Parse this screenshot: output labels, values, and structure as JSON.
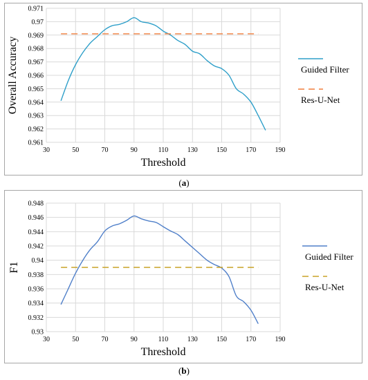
{
  "chart_data": [
    {
      "type": "line",
      "panel_label": "(a)",
      "xlabel": "Threshold",
      "ylabel": "Overall Accuracy",
      "xlim": [
        30,
        190
      ],
      "xticks": [
        30,
        50,
        70,
        90,
        110,
        130,
        150,
        170,
        190
      ],
      "ylim": [
        0.961,
        0.971
      ],
      "yticks": [
        "0.961",
        "0.962",
        "0.963",
        "0.964",
        "0.965",
        "0.966",
        "0.967",
        "0.968",
        "0.969",
        "0.97",
        "0.971"
      ],
      "grid": true,
      "legend_position": "right",
      "series": [
        {
          "name": "Guided Filter",
          "style": "solid",
          "color": "#2e9fc9",
          "x": [
            40,
            45,
            50,
            55,
            60,
            65,
            70,
            75,
            80,
            85,
            90,
            95,
            100,
            105,
            110,
            115,
            120,
            125,
            130,
            135,
            140,
            145,
            150,
            155,
            160,
            165,
            170,
            175,
            180
          ],
          "y": [
            0.9641,
            0.9656,
            0.9668,
            0.9677,
            0.9684,
            0.9689,
            0.9694,
            0.9697,
            0.9698,
            0.97,
            0.9703,
            0.97,
            0.9699,
            0.9697,
            0.9693,
            0.969,
            0.9686,
            0.9683,
            0.9678,
            0.9676,
            0.9671,
            0.9667,
            0.9665,
            0.966,
            0.965,
            0.9646,
            0.964,
            0.963,
            0.9619
          ]
        },
        {
          "name": "Res-U-Net",
          "style": "dashed",
          "color": "#f07d3c",
          "x": [
            40,
            175
          ],
          "y": [
            0.9691,
            0.9691
          ]
        }
      ]
    },
    {
      "type": "line",
      "panel_label": "(b)",
      "xlabel": "Threshold",
      "ylabel": "F1",
      "xlim": [
        30,
        190
      ],
      "xticks": [
        30,
        50,
        70,
        90,
        110,
        130,
        150,
        170,
        190
      ],
      "ylim": [
        0.93,
        0.948
      ],
      "yticks": [
        "0.93",
        "0.932",
        "0.934",
        "0.936",
        "0.938",
        "0.94",
        "0.942",
        "0.944",
        "0.946",
        "0.948"
      ],
      "grid": true,
      "legend_position": "right",
      "series": [
        {
          "name": "Guided Filter",
          "style": "solid",
          "color": "#4f7fc9",
          "x": [
            40,
            45,
            50,
            55,
            60,
            65,
            70,
            75,
            80,
            85,
            90,
            95,
            100,
            105,
            110,
            115,
            120,
            125,
            130,
            135,
            140,
            145,
            150,
            155,
            160,
            165,
            170,
            175
          ],
          "y": [
            0.9338,
            0.936,
            0.9382,
            0.94,
            0.9415,
            0.9426,
            0.9441,
            0.9448,
            0.9451,
            0.9456,
            0.9462,
            0.9458,
            0.9455,
            0.9453,
            0.9447,
            0.9441,
            0.9436,
            0.9427,
            0.9418,
            0.9409,
            0.94,
            0.9394,
            0.9389,
            0.9377,
            0.935,
            0.9342,
            0.933,
            0.9311
          ]
        },
        {
          "name": "Res-U-Net",
          "style": "dashed",
          "color": "#c9a227",
          "x": [
            40,
            175
          ],
          "y": [
            0.939,
            0.939
          ]
        }
      ]
    }
  ]
}
